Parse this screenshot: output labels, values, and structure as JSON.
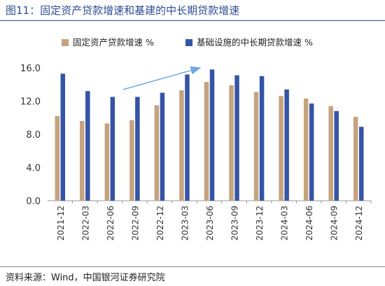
{
  "header": {
    "title": "图11：固定资产贷款增速和基建的中长期贷款增速"
  },
  "footer": {
    "source": "资料来源：Wind，中国银河证券研究院"
  },
  "colors": {
    "fixed_asset": "#c4a37e",
    "infrastructure": "#3654a6",
    "arrow": "#6ea8dc",
    "title": "#2f4e93"
  },
  "chart_data": {
    "type": "bar",
    "categories": [
      "2021-12",
      "2022-03",
      "2022-06",
      "2022-09",
      "2022-12",
      "2023-03",
      "2023-06",
      "2023-09",
      "2023-12",
      "2024-03",
      "2024-06",
      "2024-09",
      "2024-12"
    ],
    "series": [
      {
        "name": "固定资产贷款增速 %",
        "values": [
          10.2,
          9.6,
          9.3,
          9.7,
          11.5,
          13.3,
          14.3,
          13.9,
          13.1,
          12.6,
          12.3,
          11.4,
          10.1
        ]
      },
      {
        "name": "基础设施的中长期贷款增速 %",
        "values": [
          15.3,
          13.2,
          12.5,
          12.5,
          13.0,
          15.2,
          15.8,
          15.1,
          15.0,
          13.4,
          11.7,
          10.8,
          8.9
        ]
      }
    ],
    "yticks": [
      "0.0",
      "4.0",
      "8.0",
      "12.0",
      "16.0"
    ],
    "ylim": [
      0,
      16
    ],
    "legend_position": "top",
    "grid": false,
    "annotation": {
      "type": "arrow",
      "from_category": "2022-06",
      "to_category": "2023-06",
      "description": "upward trend arrow"
    }
  }
}
